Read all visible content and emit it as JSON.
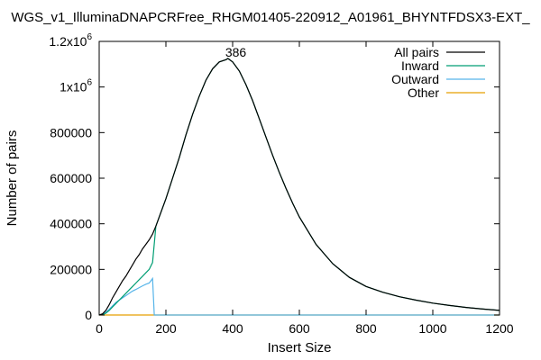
{
  "chart_data": {
    "type": "line",
    "title": "WGS_v1_IlluminaDNAPCRFree_RHGM01405-220912_A01961_BHYNTFDSX3-EXT_",
    "xlabel": "Insert Size",
    "ylabel": "Number of pairs",
    "xlim": [
      0,
      1200
    ],
    "ylim": [
      0,
      1200000
    ],
    "xticks": [
      0,
      200,
      400,
      600,
      800,
      1000,
      1200
    ],
    "xtick_labels": [
      "0",
      "200",
      "400",
      "600",
      "800",
      "1000",
      "1200"
    ],
    "yticks": [
      0,
      200000,
      400000,
      600000,
      800000,
      1000000,
      1200000
    ],
    "ytick_labels": [
      {
        "base": "0",
        "exp": ""
      },
      {
        "base": "200000",
        "exp": ""
      },
      {
        "base": "400000",
        "exp": ""
      },
      {
        "base": "600000",
        "exp": ""
      },
      {
        "base": "800000",
        "exp": ""
      },
      {
        "base": "1x10",
        "exp": "6"
      },
      {
        "base": "1.2x10",
        "exp": "6"
      }
    ],
    "grid": false,
    "legend_position": "top-right",
    "annotations": [
      {
        "text": "386",
        "x": 386,
        "y": 1125000
      }
    ],
    "series": [
      {
        "name": "All pairs",
        "color": "#000000",
        "x": [
          0,
          10,
          20,
          30,
          40,
          50,
          60,
          70,
          80,
          90,
          100,
          110,
          120,
          130,
          140,
          150,
          160,
          170,
          180,
          200,
          220,
          240,
          260,
          280,
          300,
          320,
          340,
          360,
          380,
          386,
          400,
          420,
          440,
          460,
          480,
          500,
          520,
          540,
          560,
          580,
          600,
          650,
          700,
          750,
          800,
          850,
          900,
          950,
          1000,
          1050,
          1100,
          1150,
          1200
        ],
        "y": [
          0,
          5000,
          20000,
          45000,
          75000,
          100000,
          125000,
          150000,
          170000,
          195000,
          220000,
          245000,
          265000,
          290000,
          310000,
          330000,
          355000,
          390000,
          430000,
          510000,
          600000,
          690000,
          790000,
          880000,
          960000,
          1030000,
          1080000,
          1110000,
          1120000,
          1125000,
          1110000,
          1070000,
          1010000,
          940000,
          860000,
          780000,
          700000,
          625000,
          555000,
          490000,
          430000,
          310000,
          225000,
          165000,
          125000,
          100000,
          80000,
          65000,
          52000,
          42000,
          33000,
          26000,
          20000
        ]
      },
      {
        "name": "Inward",
        "color": "#009e73",
        "x": [
          0,
          10,
          20,
          30,
          40,
          50,
          60,
          70,
          80,
          90,
          100,
          110,
          120,
          130,
          140,
          150,
          160,
          170,
          180,
          200,
          220,
          240,
          260,
          280,
          300,
          320,
          340,
          360,
          380,
          386,
          400,
          420,
          440,
          460,
          480,
          500,
          520,
          540,
          560,
          580,
          600,
          650,
          700,
          750,
          800,
          850,
          900,
          950,
          1000,
          1050,
          1100,
          1150,
          1200
        ],
        "y": [
          0,
          2000,
          8000,
          20000,
          35000,
          50000,
          65000,
          80000,
          95000,
          110000,
          125000,
          140000,
          155000,
          170000,
          185000,
          200000,
          230000,
          390000,
          430000,
          510000,
          600000,
          690000,
          790000,
          880000,
          960000,
          1030000,
          1080000,
          1110000,
          1120000,
          1125000,
          1110000,
          1070000,
          1010000,
          940000,
          860000,
          780000,
          700000,
          625000,
          555000,
          490000,
          430000,
          310000,
          225000,
          165000,
          125000,
          100000,
          80000,
          65000,
          52000,
          42000,
          33000,
          26000,
          20000
        ]
      },
      {
        "name": "Outward",
        "color": "#56b4e9",
        "x": [
          0,
          10,
          20,
          30,
          40,
          50,
          60,
          70,
          80,
          90,
          100,
          110,
          120,
          130,
          140,
          150,
          160,
          165,
          170,
          200,
          400,
          800,
          1200
        ],
        "y": [
          0,
          3000,
          12000,
          25000,
          40000,
          55000,
          65000,
          75000,
          85000,
          95000,
          105000,
          112000,
          120000,
          128000,
          135000,
          140000,
          160000,
          0,
          0,
          0,
          0,
          0,
          0
        ]
      },
      {
        "name": "Other",
        "color": "#e69f00",
        "x": [
          0,
          1200
        ],
        "y": [
          0,
          0
        ]
      }
    ]
  }
}
